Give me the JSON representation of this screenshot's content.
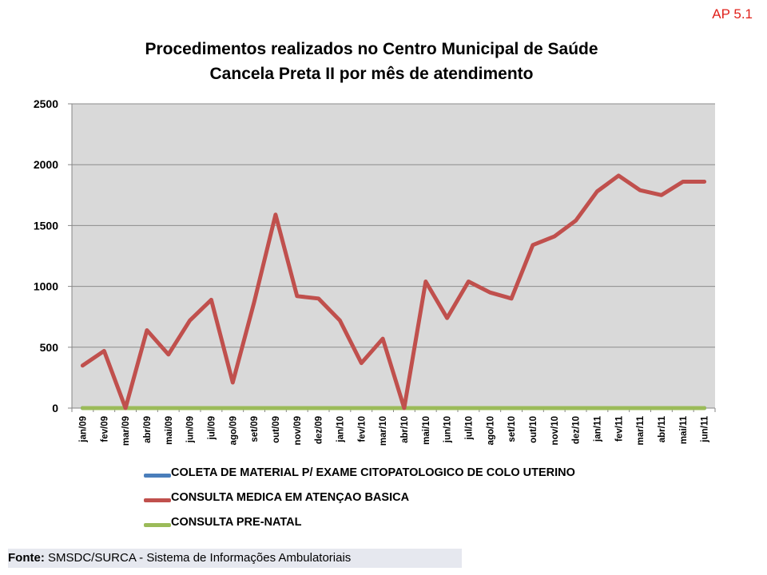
{
  "corner_tag": "AP 5.1",
  "footer": {
    "label": "Fonte:",
    "text": " SMSDC/SURCA - Sistema de Informações Ambulatoriais"
  },
  "chart_data": {
    "type": "line",
    "title": "Procedimentos realizados no Centro Municipal de Saúde Cancela Preta II por mês de atendimento",
    "title_lines": [
      "Procedimentos realizados no Centro Municipal de Saúde",
      "Cancela Preta II por mês de atendimento"
    ],
    "xlabel": "",
    "ylabel": "",
    "ylim": [
      0,
      2500
    ],
    "yticks": [
      0,
      500,
      1000,
      1500,
      2000,
      2500
    ],
    "grid": true,
    "legend_position": "bottom",
    "plot_background": "#d9d9d9",
    "categories": [
      "jan/09",
      "fev/09",
      "mar/09",
      "abr/09",
      "mai/09",
      "jun/09",
      "jul/09",
      "ago/09",
      "set/09",
      "out/09",
      "nov/09",
      "dez/09",
      "jan/10",
      "fev/10",
      "mar/10",
      "abr/10",
      "mai/10",
      "jun/10",
      "jul/10",
      "ago/10",
      "set/10",
      "out/10",
      "nov/10",
      "dez/10",
      "jan/11",
      "fev/11",
      "mar/11",
      "abr/11",
      "mai/11",
      "jun/11"
    ],
    "series": [
      {
        "name": "COLETA DE MATERIAL P/ EXAME CITOPATOLOGICO DE COLO UTERINO",
        "color": "#4a7ebb",
        "values": [
          0,
          0,
          0,
          0,
          0,
          0,
          0,
          0,
          0,
          0,
          0,
          0,
          0,
          0,
          0,
          0,
          0,
          0,
          0,
          0,
          0,
          0,
          0,
          0,
          0,
          0,
          0,
          0,
          0,
          0
        ]
      },
      {
        "name": "CONSULTA MEDICA EM ATENÇAO BASICA",
        "color": "#c0504d",
        "values": [
          350,
          470,
          0,
          640,
          440,
          720,
          890,
          210,
          870,
          1590,
          920,
          900,
          720,
          370,
          570,
          0,
          1040,
          740,
          1040,
          950,
          900,
          1340,
          1410,
          1540,
          1780,
          1910,
          1790,
          1750,
          1860,
          1860
        ]
      },
      {
        "name": "CONSULTA PRE-NATAL",
        "color": "#9bbb59",
        "values": [
          0,
          0,
          0,
          0,
          0,
          0,
          0,
          0,
          0,
          0,
          0,
          0,
          0,
          0,
          0,
          0,
          0,
          0,
          0,
          0,
          0,
          0,
          0,
          0,
          0,
          0,
          0,
          0,
          0,
          0
        ]
      }
    ]
  }
}
